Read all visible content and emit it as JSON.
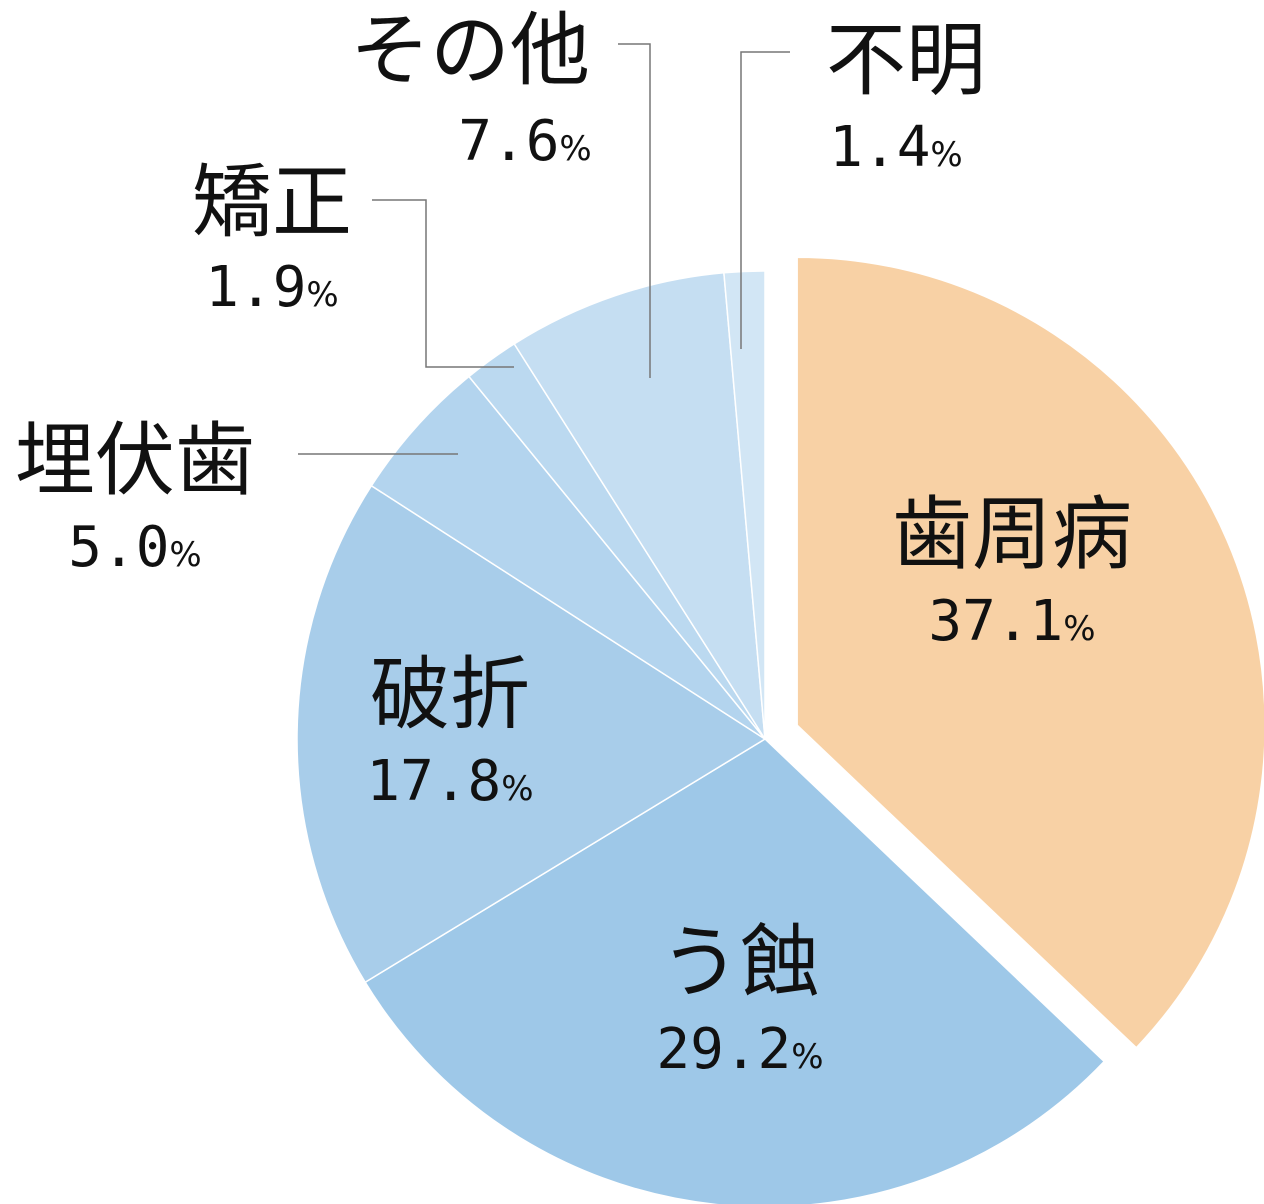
{
  "chart_data": {
    "type": "pie",
    "unit": "%",
    "slices": [
      {
        "label": "歯周病",
        "value": 37.1,
        "color": "#f8d1a5",
        "exploded": true
      },
      {
        "label": "う蝕",
        "value": 29.2,
        "color": "#9ec8e8"
      },
      {
        "label": "破折",
        "value": 17.8,
        "color": "#a8cdea"
      },
      {
        "label": "埋伏歯",
        "value": 5.0,
        "color": "#b3d4ee"
      },
      {
        "label": "矯正",
        "value": 1.9,
        "color": "#bbd9f0"
      },
      {
        "label": "その他",
        "value": 7.6,
        "color": "#c5def2"
      },
      {
        "label": "不明",
        "value": 1.4,
        "color": "#d2e6f5"
      }
    ],
    "value_labels": [
      "37.1",
      "29.2",
      "17.8",
      "5.0",
      "1.9",
      "7.6",
      "1.4"
    ]
  }
}
